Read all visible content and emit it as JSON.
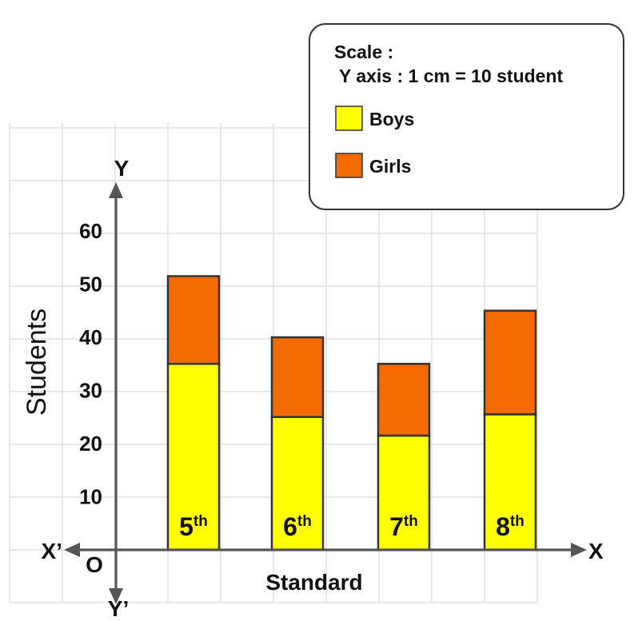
{
  "chart_data": {
    "type": "bar",
    "stacked": true,
    "categories": [
      "5th",
      "6th",
      "7th",
      "8th"
    ],
    "category_labels": [
      {
        "num": "5",
        "sup": "th"
      },
      {
        "num": "6",
        "sup": "th"
      },
      {
        "num": "7",
        "sup": "th"
      },
      {
        "num": "8",
        "sup": "th"
      }
    ],
    "series": [
      {
        "name": "Boys",
        "color": "#ffff00",
        "values": [
          35,
          25,
          21.5,
          25.5
        ]
      },
      {
        "name": "Girls",
        "color": "#f36a00",
        "values": [
          16.5,
          15,
          13.5,
          19.5
        ]
      }
    ],
    "xlabel": "Standard",
    "ylabel": "Students",
    "ylim": [
      -8,
      70
    ],
    "yticks": [
      10,
      20,
      30,
      40,
      50,
      60
    ],
    "grid": true,
    "legend_position": "top-right",
    "axis_letters": {
      "x": "X",
      "x_neg": "X’",
      "y": "Y",
      "y_neg": "Y’",
      "origin": "O"
    },
    "legend": {
      "scale_title": "Scale :",
      "scale_text": "Y axis : 1 cm = 10 student"
    }
  }
}
